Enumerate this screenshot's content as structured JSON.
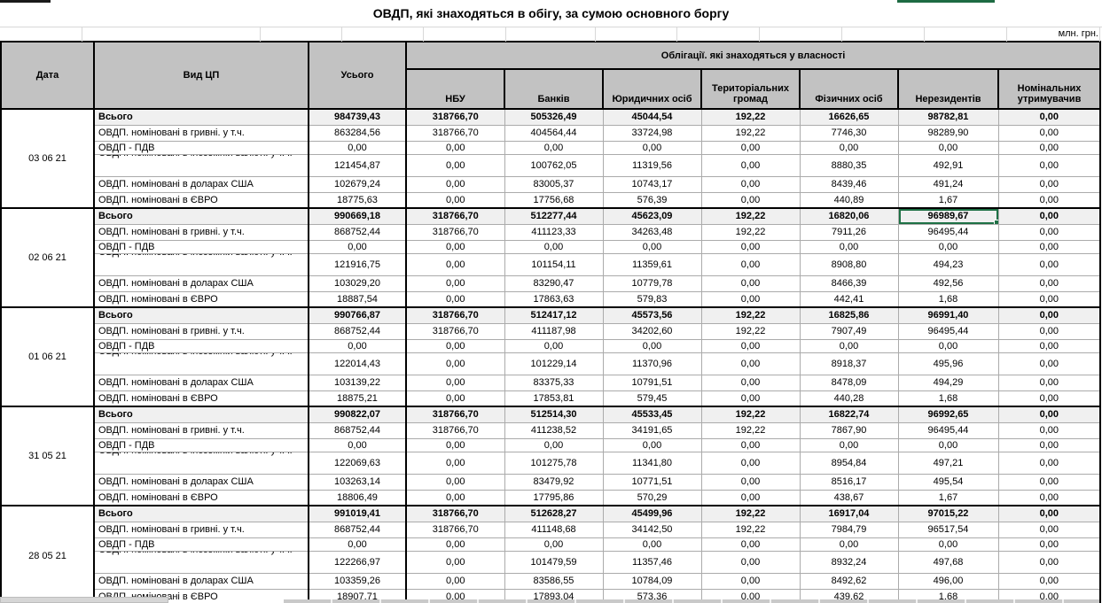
{
  "title": "ОВДП, які знаходяться в обігу, за сумою основного боргу",
  "unit_label": "млн. грн.",
  "colors": {
    "selection_green": "#1e7145",
    "header_fill": "#c2c2c2",
    "grid_line": "#ababab",
    "thick_border": "#000000"
  },
  "table": {
    "col_headers": {
      "date": "Дата",
      "type": "Вид ЦП",
      "total": "Усього",
      "group": "Облігації. які знаходяться у власності",
      "owners": [
        "НБУ",
        "Банків",
        "Юридичних осіб",
        "Територіальних громад",
        "Фізичних осіб",
        "Нерезидентів",
        "Номінальних утримувачив"
      ]
    },
    "row_labels": [
      "Всього",
      "ОВДП. номіновані в гривні. у т.ч.",
      "ОВДП - ПДВ",
      "ОВДП. номіновані в іноземній валюті. у т.ч.",
      "ОВДП. номіновані в доларах США",
      "ОВДП. номіновані в ЄВРО"
    ],
    "groups": [
      {
        "date": "03 06 21",
        "rows": [
          [
            "984739,43",
            "318766,70",
            "505326,49",
            "45044,54",
            "192,22",
            "16626,65",
            "98782,81",
            "0,00"
          ],
          [
            "863284,56",
            "318766,70",
            "404564,44",
            "33724,98",
            "192,22",
            "7746,30",
            "98289,90",
            "0,00"
          ],
          [
            "0,00",
            "0,00",
            "0,00",
            "0,00",
            "0,00",
            "0,00",
            "0,00",
            "0,00"
          ],
          [
            "121454,87",
            "0,00",
            "100762,05",
            "11319,56",
            "0,00",
            "8880,35",
            "492,91",
            "0,00"
          ],
          [
            "102679,24",
            "0,00",
            "83005,37",
            "10743,17",
            "0,00",
            "8439,46",
            "491,24",
            "0,00"
          ],
          [
            "18775,63",
            "0,00",
            "17756,68",
            "576,39",
            "0,00",
            "440,89",
            "1,67",
            "0,00"
          ]
        ]
      },
      {
        "date": "02 06 21",
        "rows": [
          [
            "990669,18",
            "318766,70",
            "512277,44",
            "45623,09",
            "192,22",
            "16820,06",
            "96989,67",
            "0,00"
          ],
          [
            "868752,44",
            "318766,70",
            "411123,33",
            "34263,48",
            "192,22",
            "7911,26",
            "96495,44",
            "0,00"
          ],
          [
            "0,00",
            "0,00",
            "0,00",
            "0,00",
            "0,00",
            "0,00",
            "0,00",
            "0,00"
          ],
          [
            "121916,75",
            "0,00",
            "101154,11",
            "11359,61",
            "0,00",
            "8908,80",
            "494,23",
            "0,00"
          ],
          [
            "103029,20",
            "0,00",
            "83290,47",
            "10779,78",
            "0,00",
            "8466,39",
            "492,56",
            "0,00"
          ],
          [
            "18887,54",
            "0,00",
            "17863,63",
            "579,83",
            "0,00",
            "442,41",
            "1,68",
            "0,00"
          ]
        ]
      },
      {
        "date": "01 06 21",
        "rows": [
          [
            "990766,87",
            "318766,70",
            "512417,12",
            "45573,56",
            "192,22",
            "16825,86",
            "96991,40",
            "0,00"
          ],
          [
            "868752,44",
            "318766,70",
            "411187,98",
            "34202,60",
            "192,22",
            "7907,49",
            "96495,44",
            "0,00"
          ],
          [
            "0,00",
            "0,00",
            "0,00",
            "0,00",
            "0,00",
            "0,00",
            "0,00",
            "0,00"
          ],
          [
            "122014,43",
            "0,00",
            "101229,14",
            "11370,96",
            "0,00",
            "8918,37",
            "495,96",
            "0,00"
          ],
          [
            "103139,22",
            "0,00",
            "83375,33",
            "10791,51",
            "0,00",
            "8478,09",
            "494,29",
            "0,00"
          ],
          [
            "18875,21",
            "0,00",
            "17853,81",
            "579,45",
            "0,00",
            "440,28",
            "1,68",
            "0,00"
          ]
        ]
      },
      {
        "date": "31 05 21",
        "rows": [
          [
            "990822,07",
            "318766,70",
            "512514,30",
            "45533,45",
            "192,22",
            "16822,74",
            "96992,65",
            "0,00"
          ],
          [
            "868752,44",
            "318766,70",
            "411238,52",
            "34191,65",
            "192,22",
            "7867,90",
            "96495,44",
            "0,00"
          ],
          [
            "0,00",
            "0,00",
            "0,00",
            "0,00",
            "0,00",
            "0,00",
            "0,00",
            "0,00"
          ],
          [
            "122069,63",
            "0,00",
            "101275,78",
            "11341,80",
            "0,00",
            "8954,84",
            "497,21",
            "0,00"
          ],
          [
            "103263,14",
            "0,00",
            "83479,92",
            "10771,51",
            "0,00",
            "8516,17",
            "495,54",
            "0,00"
          ],
          [
            "18806,49",
            "0,00",
            "17795,86",
            "570,29",
            "0,00",
            "438,67",
            "1,67",
            "0,00"
          ]
        ]
      },
      {
        "date": "28 05 21",
        "rows": [
          [
            "991019,41",
            "318766,70",
            "512628,27",
            "45499,96",
            "192,22",
            "16917,04",
            "97015,22",
            "0,00"
          ],
          [
            "868752,44",
            "318766,70",
            "411148,68",
            "34142,50",
            "192,22",
            "7984,79",
            "96517,54",
            "0,00"
          ],
          [
            "0,00",
            "0,00",
            "0,00",
            "0,00",
            "0,00",
            "0,00",
            "0,00",
            "0,00"
          ],
          [
            "122266,97",
            "0,00",
            "101479,59",
            "11357,46",
            "0,00",
            "8932,24",
            "497,68",
            "0,00"
          ],
          [
            "103359,26",
            "0,00",
            "83586,55",
            "10784,09",
            "0,00",
            "8492,62",
            "496,00",
            "0,00"
          ],
          [
            "18907,71",
            "0,00",
            "17893,04",
            "573,36",
            "0,00",
            "439,62",
            "1,68",
            "0,00"
          ]
        ]
      }
    ]
  },
  "selection": {
    "group": 1,
    "row": 0,
    "col": 6,
    "value": "96989,67"
  }
}
